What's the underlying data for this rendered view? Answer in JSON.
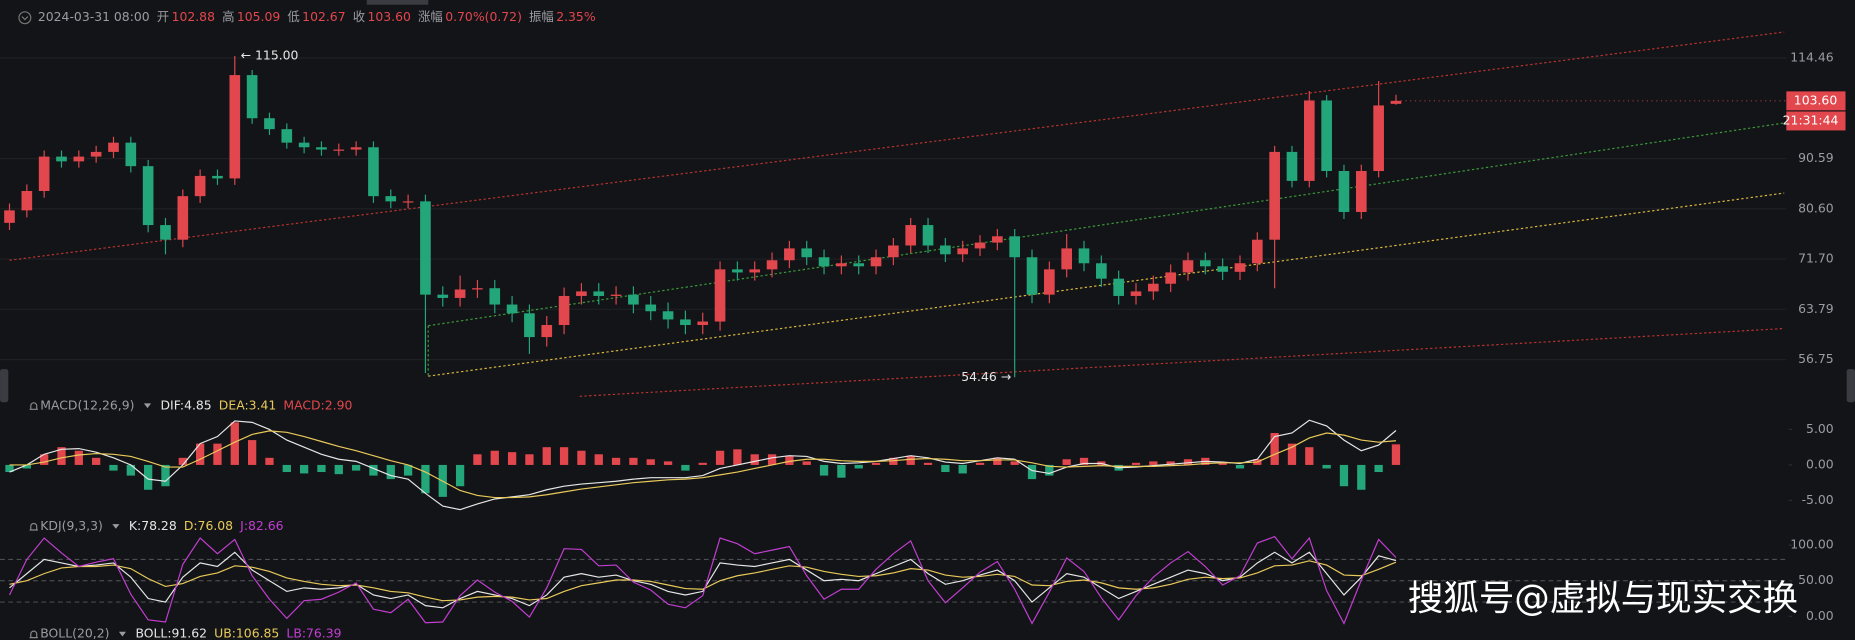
{
  "watermark": "搜狐号@虚拟与现实交换",
  "chart_data": [
    {
      "type": "candlestick",
      "time": "2024-03-31 08:00",
      "info": [
        {
          "label": "开",
          "value": "102.88"
        },
        {
          "label": "高",
          "value": "105.09"
        },
        {
          "label": "低",
          "value": "102.67"
        },
        {
          "label": "收",
          "value": "103.60"
        },
        {
          "label": "涨幅",
          "value": "0.70%(0.72)"
        },
        {
          "label": "振幅",
          "value": "2.35%"
        }
      ],
      "up_color": "#e2474d",
      "down_color": "#24a67b",
      "open": [
        78,
        80.3,
        84,
        91,
        90,
        91,
        92,
        94,
        89,
        77.6,
        75,
        83,
        87,
        86.5,
        110,
        99.5,
        97,
        94,
        93,
        92.5,
        92.5,
        93,
        83,
        82,
        82,
        66,
        65.5,
        66.8,
        67,
        64.5,
        63.2,
        59.8,
        61.5,
        65.8,
        66.5,
        65.8,
        66,
        64.5,
        63.5,
        62.3,
        61.5,
        62,
        70,
        69.5,
        70,
        71.5,
        73.5,
        72,
        70.5,
        71,
        70.5,
        72,
        74,
        77.6,
        74,
        72.5,
        73.5,
        74.5,
        75.6,
        72,
        66,
        70,
        73.5,
        71,
        68.5,
        65.8,
        66.5,
        67.7,
        69.5,
        71.5,
        70.5,
        69.6,
        71,
        75,
        92,
        86,
        103.7,
        88,
        80,
        88,
        102.88
      ],
      "high": [
        81.6,
        85.3,
        92.3,
        92.3,
        92.3,
        93.3,
        95.3,
        95.3,
        90.3,
        78.9,
        84.3,
        88.3,
        88.3,
        115,
        111.3,
        100.8,
        98.3,
        95.3,
        94.3,
        93.8,
        94.3,
        94.3,
        84.3,
        83.3,
        83.3,
        67.3,
        69,
        68.3,
        68.3,
        65.8,
        64.5,
        62.8,
        67.1,
        67.8,
        67.8,
        67.3,
        67.3,
        65.8,
        64.8,
        63.6,
        63.3,
        71.3,
        71.3,
        71.3,
        72.8,
        74.8,
        74.8,
        73.3,
        72.3,
        72.3,
        73.3,
        75.3,
        78.9,
        78.9,
        75.3,
        74.8,
        75.8,
        76.9,
        76.9,
        73.3,
        71.3,
        76,
        74.8,
        72.3,
        69.8,
        67.8,
        69,
        70.8,
        72.8,
        72.8,
        71.8,
        72.3,
        76.3,
        93.3,
        93.3,
        106,
        105,
        89.3,
        89.3,
        108.5,
        105.09
      ],
      "low": [
        76.7,
        79,
        82.7,
        88.7,
        88.7,
        89.7,
        90.7,
        87.7,
        76.3,
        72.5,
        73.7,
        81.7,
        85.2,
        85.2,
        98.2,
        95.7,
        92.7,
        91.7,
        91.2,
        91.2,
        91.2,
        81.7,
        80.7,
        80.7,
        55,
        64.2,
        64.2,
        65.5,
        63.2,
        61.9,
        57.5,
        58.5,
        60.2,
        64.5,
        64.5,
        64.5,
        63.2,
        62.2,
        61,
        60.2,
        60.2,
        60.7,
        68.2,
        68.2,
        68.7,
        70.2,
        70.7,
        69.2,
        69.2,
        69.2,
        69.2,
        70.7,
        72.7,
        72.7,
        71.2,
        71.2,
        72.2,
        73.2,
        54.46,
        64.7,
        64.7,
        68.7,
        69.7,
        67.2,
        64.5,
        64.5,
        65.2,
        66.4,
        68.2,
        69.2,
        68.3,
        68.3,
        69.7,
        67,
        84.7,
        84.7,
        86.7,
        78.7,
        78.7,
        86.7,
        102.67
      ],
      "close": [
        80.3,
        84,
        91,
        90,
        91,
        92,
        94,
        89,
        77.6,
        75,
        83,
        87,
        86.5,
        110,
        99.5,
        97,
        94,
        93,
        92.5,
        92.5,
        93,
        83,
        82,
        82,
        66,
        65.5,
        66.8,
        67,
        64.5,
        63.2,
        59.8,
        61.5,
        65.8,
        66.5,
        65.8,
        66,
        64.5,
        63.5,
        62.3,
        61.5,
        62,
        70,
        69.5,
        70,
        71.5,
        73.5,
        72,
        70.5,
        71,
        70.5,
        72,
        74,
        77.6,
        74,
        72.5,
        73.5,
        74.5,
        75.6,
        72,
        66,
        70,
        73.5,
        71,
        68.5,
        65.8,
        66.5,
        67.7,
        69.5,
        71.5,
        70.5,
        69.6,
        71,
        75,
        92,
        86,
        103.7,
        88,
        80,
        88,
        102.5,
        103.6
      ],
      "log_scale": true,
      "ylim": [
        52.1,
        131
      ],
      "yticks": [
        114.46,
        90.59,
        {
          "value": 80.6,
          "label": "80.60"
        },
        {
          "value": 71.7,
          "label": "71.70"
        },
        63.79,
        56.75
      ],
      "grid": true,
      "max_label": {
        "value": 115,
        "label": "← 115.00"
      },
      "min_label": {
        "value": 54.46,
        "label": "54.46 →"
      },
      "last_price": {
        "value": 103.6,
        "label": "103.60"
      },
      "countdown": "21:31:44",
      "trend_lines": [
        {
          "color": "#b8332f",
          "x": [
            0,
            102.4
          ],
          "values": [
            71.5,
            121.6
          ]
        },
        {
          "color": "#3a9a3a",
          "x": [
            24.16,
            102.4
          ],
          "values": [
            61.4,
            98.4
          ]
        },
        {
          "color": "#d9b73a",
          "x": [
            24.16,
            102.4
          ],
          "values": [
            54.6,
            83.6
          ]
        },
        {
          "color": "#b8332f",
          "x": [
            32.9,
            102.4
          ],
          "values": [
            52.1,
            61
          ]
        },
        {
          "color": "#3a9a3a",
          "x": [
            24.16,
            24.16
          ],
          "values": [
            61.4,
            54.6
          ]
        }
      ]
    },
    {
      "type": "macd",
      "title": "MACD(12,26,9)",
      "ylim": [
        -6.5,
        7.17
      ],
      "yticks": [
        {
          "value": 5,
          "label": "5.00"
        },
        {
          "value": 0,
          "label": "0.00"
        },
        {
          "value": -5,
          "label": "-5.00"
        }
      ],
      "series": [
        {
          "name": "DIF:4.85",
          "color": "#e6e6e6",
          "values": [
            -1,
            0,
            1.5,
            2.2,
            2.3,
            1.8,
            1,
            0,
            -2,
            -2.3,
            0,
            3,
            4,
            6.2,
            6,
            5,
            3.5,
            2.5,
            1.5,
            0.8,
            0.5,
            -0.5,
            -1.5,
            -2,
            -4,
            -5.8,
            -6.3,
            -5.5,
            -4.8,
            -4.5,
            -4.2,
            -3.5,
            -3,
            -2.7,
            -2.5,
            -2.3,
            -2,
            -1.8,
            -1.8,
            -1.8,
            -1.5,
            -0.5,
            0,
            0.5,
            1,
            1.3,
            1.2,
            0.5,
            0.2,
            0.3,
            0.5,
            0.9,
            1.3,
            1,
            0.4,
            0.2,
            0.6,
            1,
            0.8,
            -0.8,
            -1.2,
            -0.3,
            0.2,
            0.2,
            -0.4,
            -0.3,
            -0.1,
            0.1,
            0.3,
            0.5,
            0.4,
            0.2,
            0.8,
            4,
            4.5,
            6.3,
            5.5,
            3.5,
            2,
            2.8,
            4.85
          ]
        },
        {
          "name": "DEA:3.41",
          "color": "#e8c95a",
          "values": [
            0,
            0,
            0.4,
            1,
            1.4,
            1.6,
            1.5,
            1.2,
            0.5,
            -0.3,
            -0.3,
            0.8,
            2,
            3.2,
            4.3,
            4.8,
            4.6,
            4,
            3.3,
            2.6,
            2,
            1.3,
            0.6,
            0,
            -1,
            -2.3,
            -3.6,
            -4.3,
            -4.6,
            -4.6,
            -4.5,
            -4.2,
            -3.8,
            -3.4,
            -3.1,
            -2.8,
            -2.5,
            -2.3,
            -2.1,
            -2,
            -1.8,
            -1.4,
            -1,
            -0.5,
            0,
            0.5,
            0.8,
            0.8,
            0.6,
            0.5,
            0.5,
            0.6,
            0.8,
            0.9,
            0.8,
            0.6,
            0.6,
            0.7,
            0.7,
            0.3,
            -0.2,
            -0.3,
            -0.2,
            -0.1,
            -0.2,
            -0.2,
            -0.2,
            -0.1,
            0,
            0.2,
            0.3,
            0.3,
            0.4,
            1.5,
            2.5,
            3.8,
            4.5,
            4.2,
            3.5,
            3.2,
            3.41
          ]
        },
        {
          "name": "MACD:2.90",
          "type": "bar",
          "color": "#e2474d",
          "down_color": "#24a67b",
          "values": [
            -1,
            -0.5,
            1.5,
            2.5,
            2,
            1,
            -0.8,
            -1.5,
            -3.5,
            -3,
            1,
            3,
            3,
            6,
            3.5,
            1,
            -1,
            -1.2,
            -1,
            -1.3,
            -0.8,
            -1.5,
            -2,
            -1.5,
            -4,
            -4.5,
            -3,
            1.5,
            2,
            1.8,
            1.5,
            2.5,
            2.5,
            2,
            1.5,
            1,
            1,
            0.8,
            0.5,
            -0.8,
            0.3,
            2,
            2.2,
            1.5,
            1.5,
            1.3,
            0.5,
            -1.5,
            -1.8,
            -0.5,
            0.3,
            1,
            1.3,
            0.3,
            -1,
            -1.2,
            0.3,
            1,
            0.5,
            -2,
            -1.5,
            0.8,
            1,
            0.5,
            -0.8,
            0.3,
            0.5,
            0.5,
            0.8,
            1,
            0.3,
            -0.5,
            0.8,
            4.5,
            3,
            2.5,
            -0.5,
            -3,
            -3.5,
            -1,
            2.9
          ]
        }
      ]
    },
    {
      "type": "kdj",
      "title": "KDJ(9,3,3)",
      "ylim": [
        -15,
        118
      ],
      "yticks": [
        {
          "value": 100,
          "label": "100.00"
        },
        {
          "value": 50,
          "label": "50.00"
        },
        {
          "value": 0,
          "label": "0.00"
        }
      ],
      "ref_lines": [
        20,
        50,
        80
      ],
      "series": [
        {
          "name": "K:78.28",
          "color": "#e6e6e6",
          "values": [
            40,
            60,
            80,
            75,
            70,
            72,
            75,
            55,
            25,
            20,
            55,
            75,
            70,
            90,
            65,
            50,
            35,
            40,
            38,
            40,
            45,
            30,
            25,
            30,
            15,
            12,
            25,
            35,
            30,
            25,
            15,
            30,
            55,
            60,
            55,
            58,
            50,
            45,
            35,
            30,
            35,
            75,
            72,
            70,
            75,
            80,
            65,
            50,
            52,
            50,
            60,
            70,
            80,
            60,
            45,
            50,
            58,
            65,
            50,
            20,
            40,
            60,
            55,
            40,
            25,
            35,
            45,
            55,
            65,
            60,
            50,
            55,
            75,
            90,
            75,
            90,
            60,
            30,
            55,
            85,
            78.28
          ]
        },
        {
          "name": "D:76.08",
          "color": "#e8c95a",
          "values": [
            45,
            50,
            60,
            68,
            70,
            70,
            72,
            67,
            53,
            42,
            46,
            56,
            61,
            71,
            69,
            63,
            54,
            49,
            45,
            43,
            44,
            40,
            35,
            33,
            27,
            22,
            23,
            27,
            28,
            27,
            23,
            25,
            35,
            43,
            47,
            51,
            51,
            49,
            44,
            39,
            38,
            50,
            57,
            61,
            66,
            71,
            69,
            63,
            59,
            56,
            57,
            61,
            67,
            65,
            58,
            55,
            56,
            59,
            56,
            44,
            43,
            49,
            51,
            47,
            40,
            38,
            40,
            45,
            52,
            55,
            53,
            54,
            61,
            71,
            72,
            78,
            72,
            58,
            57,
            66,
            76.08
          ]
        },
        {
          "name": "J:82.66",
          "color": "#c23ed1",
          "values": [
            30,
            80,
            110,
            89,
            70,
            76,
            81,
            31,
            -5,
            -8,
            73,
            110,
            88,
            108,
            57,
            24,
            -3,
            22,
            24,
            34,
            47,
            10,
            5,
            24,
            -9,
            -8,
            29,
            51,
            34,
            21,
            -1,
            40,
            95,
            94,
            71,
            72,
            48,
            37,
            17,
            12,
            29,
            110,
            102,
            88,
            93,
            98,
            57,
            24,
            38,
            38,
            66,
            88,
            106,
            50,
            19,
            40,
            62,
            77,
            38,
            -10,
            34,
            82,
            63,
            26,
            -5,
            29,
            55,
            75,
            91,
            70,
            44,
            57,
            103,
            112,
            81,
            110,
            36,
            -10,
            51,
            108,
            82.66
          ]
        }
      ]
    },
    {
      "type": "boll",
      "title": "BOLL(20,2)",
      "series": [
        {
          "name": "BOLL:91.62",
          "color": "#e6e6e6"
        },
        {
          "name": "UB:106.85",
          "color": "#e8c95a"
        },
        {
          "name": "LB:76.39",
          "color": "#c23ed1"
        }
      ]
    }
  ]
}
